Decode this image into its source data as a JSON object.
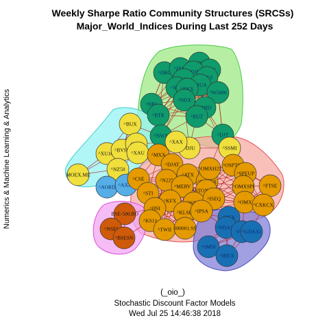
{
  "title_line1": "Weekly Sharpe Ratio Community Structures (SRCSs)",
  "title_line2": "Major_World_Indices During Last 252 Days",
  "side_label": "Numerics & Machine Learning & Analytics",
  "footer": {
    "line1": "(_oio_)",
    "line2": "Stochastic Discount Factor Models",
    "line3": "Wed Jul 25 14:46:38 2018"
  },
  "colors": {
    "green_node": "#0f9b6b",
    "yellow_node": "#f0df3c",
    "orange_node": "#e59a00",
    "blue_node": "#1870b4",
    "lightblue_node": "#55aee6",
    "red_node": "#cf5a0a",
    "green_hull": "#9eea84",
    "cyan_hull": "#96f3f3",
    "salmon_hull": "#f6a8a0",
    "navy_hull": "#7c7cd8",
    "magenta_hull": "#f2a2f2",
    "edge": "#b01818"
  },
  "communities": [
    {
      "name": "green",
      "nodes": [
        "^DRG",
        "^IXIC",
        "^NYA",
        "^OEX",
        "^DJI",
        "^RUI",
        "^PSE",
        "^RUA",
        "^XMI",
        "^BKX",
        "^W5000",
        "^NB1",
        "^NDX",
        "^MID",
        "^BTK",
        "^RUT",
        "^NWX",
        "^DJT"
      ]
    },
    {
      "name": "yellow",
      "nodes": [
        "^BUX",
        "^XU100",
        "^BVSP",
        "^KSE",
        "^XAU",
        "^NZ50",
        "^DJU",
        "^XAX",
        "MOEX.ME",
        "^SSMI"
      ]
    },
    {
      "name": "lightblue",
      "nodes": [
        "^AORD",
        "^AXJO"
      ]
    },
    {
      "name": "orange",
      "nodes": [
        "^MXX",
        "^DJAT",
        "^N225",
        "^CSE",
        "^ATX",
        "^STOXX",
        "^OMXH25",
        "^OSPTSE",
        "^SPEUP",
        "^FTSE",
        "^OMXSPI",
        "^STI",
        "^MERV",
        "^STOXX50E",
        "^KFX",
        "^OSEAX",
        "^ISEQ",
        "^OMX",
        "^CXKCX",
        "^HSI",
        "^KLSE",
        "^IPSA",
        "^KS11",
        "^TWII",
        "000001.SS"
      ]
    },
    {
      "name": "blue",
      "nodes": [
        "^BFX",
        "^NDAXI",
        "^FCHI",
        "^GDAXI",
        "^SMSI",
        "^IBEX"
      ]
    },
    {
      "name": "red",
      "nodes": [
        "BSE-500.BO",
        "^NSEI",
        "^BSESN"
      ]
    }
  ]
}
